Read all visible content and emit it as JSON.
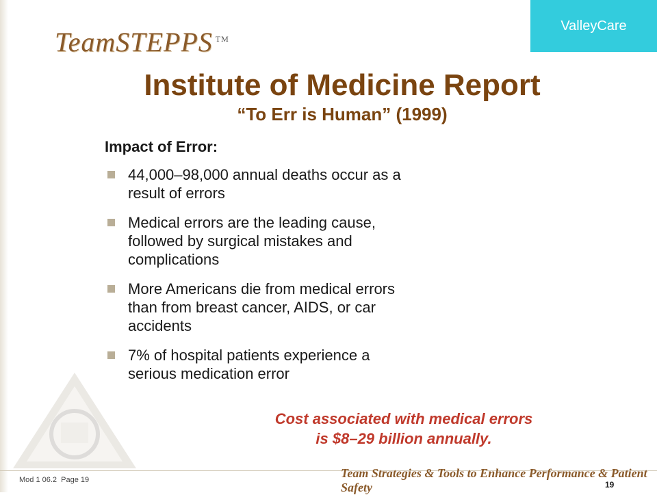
{
  "logo": {
    "text": "TeamSTEPPS",
    "tm": "TM"
  },
  "org": {
    "name": "ValleyCare"
  },
  "title": "Institute of Medicine Report",
  "subtitle": "“To Err is Human” (1999)",
  "section_heading": "Impact of Error:",
  "bullets": [
    "44,000–98,000 annual deaths occur as a result of errors",
    "Medical errors are the leading cause, followed by surgical mistakes and complications",
    "More Americans die from medical errors than from breast cancer, AIDS, or car accidents",
    "7% of hospital patients experience a serious medication error"
  ],
  "callout": {
    "line1": "Cost associated with medical errors",
    "line2": "is $8–29 billion annually."
  },
  "footer": {
    "module": "Mod 1 06.2",
    "page_label": "Page 19",
    "tagline": "Team Strategies & Tools to Enhance Performance & Patient Safety",
    "page_number": "19"
  },
  "colors": {
    "title": "#7a4410",
    "callout": "#c0392b",
    "org_box": "#33ccdd",
    "bullet": "#b9ae97"
  }
}
